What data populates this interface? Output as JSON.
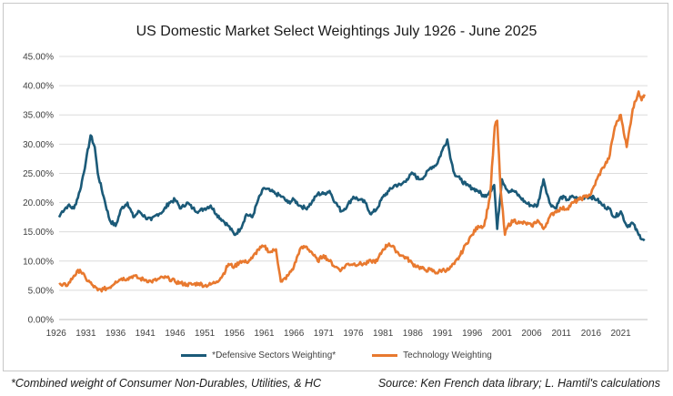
{
  "chart_data": {
    "type": "line",
    "title": "US Domestic Market Select Weightings July 1926 - June 2025",
    "xlabel": "",
    "ylabel": "",
    "xlim": [
      1926.5,
      2025.5
    ],
    "ylim": [
      0,
      45
    ],
    "yticks": [
      "0.00%",
      "5.00%",
      "10.00%",
      "15.00%",
      "20.00%",
      "25.00%",
      "30.00%",
      "35.00%",
      "40.00%",
      "45.00%"
    ],
    "xticks": [
      "1926",
      "1931",
      "1936",
      "1941",
      "1946",
      "1951",
      "1956",
      "1961",
      "1966",
      "1971",
      "1976",
      "1981",
      "1986",
      "1991",
      "1996",
      "2001",
      "2006",
      "2011",
      "2016",
      "2021"
    ],
    "legend_position": "bottom",
    "series": [
      {
        "name": "*Defensive Sectors Weighting*",
        "color": "#1b5a78",
        "x": [
          1926.5,
          1927,
          1928,
          1929,
          1930,
          1931,
          1931.8,
          1932.5,
          1933,
          1934,
          1935,
          1936,
          1937,
          1938,
          1939,
          1940,
          1941,
          1942,
          1943,
          1944,
          1945,
          1946,
          1947,
          1948,
          1949,
          1950,
          1951,
          1952,
          1953,
          1954,
          1955,
          1956,
          1957,
          1958,
          1959,
          1960,
          1961,
          1962,
          1963,
          1964,
          1965,
          1966,
          1967,
          1968,
          1969,
          1970,
          1971,
          1972,
          1973,
          1974,
          1975,
          1976,
          1977,
          1978,
          1979,
          1980,
          1981,
          1982,
          1983,
          1984,
          1985,
          1986,
          1987,
          1988,
          1989,
          1990,
          1991,
          1991.8,
          1992.5,
          1993,
          1994,
          1995,
          1996,
          1997,
          1998,
          1999,
          1999.7,
          2000.2,
          2001,
          2002,
          2003,
          2004,
          2005,
          2006,
          2007,
          2008,
          2009,
          2010,
          2011,
          2012,
          2013,
          2014,
          2015,
          2016,
          2017,
          2018,
          2019,
          2020,
          2021,
          2022,
          2023,
          2024,
          2025
        ],
        "values": [
          17.5,
          18.5,
          19.5,
          19,
          22,
          27,
          31.5,
          29.5,
          25,
          21,
          17,
          16,
          19,
          20,
          17.5,
          18.5,
          17.5,
          17,
          18,
          18.5,
          20,
          20.5,
          19,
          20,
          19,
          18.5,
          19,
          19.5,
          18,
          17,
          16,
          14.5,
          15.5,
          18,
          17.5,
          20.5,
          22.5,
          22,
          21.5,
          21,
          20,
          20.5,
          19.5,
          19,
          20,
          21.5,
          21.5,
          22,
          20,
          18.5,
          19.5,
          21,
          20.5,
          20,
          18,
          19,
          21,
          22,
          23,
          23,
          24,
          25,
          24,
          24.5,
          26,
          26.5,
          29,
          30.8,
          27,
          25,
          24,
          23,
          22.5,
          22,
          21,
          22,
          23,
          15.5,
          24,
          22,
          22,
          21,
          20,
          19.5,
          19.5,
          24,
          20,
          19,
          21,
          20.5,
          21,
          20.5,
          21,
          21,
          20.5,
          19.5,
          19,
          17.5,
          18.5,
          16,
          16.5,
          14.5,
          13.5
        ]
      },
      {
        "name": "Technology Weighting",
        "color": "#e8792f",
        "x": [
          1926.5,
          1927,
          1928,
          1929,
          1930,
          1931,
          1932,
          1933,
          1934,
          1935,
          1936,
          1937,
          1938,
          1939,
          1940,
          1941,
          1942,
          1943,
          1944,
          1945,
          1946,
          1947,
          1948,
          1949,
          1950,
          1951,
          1952,
          1953,
          1954,
          1955,
          1956,
          1957,
          1958,
          1959,
          1960,
          1961,
          1962,
          1963,
          1963.8,
          1964,
          1965,
          1966,
          1967,
          1968,
          1969,
          1970,
          1971,
          1972,
          1973,
          1974,
          1975,
          1976,
          1977,
          1978,
          1979,
          1980,
          1981,
          1982,
          1983,
          1984,
          1985,
          1986,
          1987,
          1988,
          1989,
          1990,
          1991,
          1992,
          1993,
          1994,
          1995,
          1996,
          1997,
          1998,
          1999,
          1999.8,
          2000.2,
          2000.8,
          2001.5,
          2002,
          2003,
          2004,
          2005,
          2006,
          2007,
          2008,
          2009,
          2010,
          2011,
          2012,
          2013,
          2014,
          2015,
          2016,
          2017,
          2018,
          2019,
          2020,
          2021,
          2022,
          2023,
          2024,
          2024.5,
          2025
        ],
        "values": [
          6,
          5.8,
          6,
          7.5,
          8.5,
          7,
          6,
          5,
          5.2,
          5.5,
          6.5,
          7,
          7,
          7.5,
          7,
          6.8,
          6.5,
          6.8,
          7.2,
          7,
          6.5,
          6.2,
          6,
          6,
          6.2,
          5.8,
          6,
          6.5,
          7.5,
          9.5,
          9,
          10,
          9.8,
          10.5,
          12,
          12.5,
          11.5,
          12,
          6.5,
          6.5,
          7.5,
          9,
          12,
          12.5,
          11.5,
          10,
          11,
          10,
          9,
          8.5,
          9.5,
          9.5,
          9.5,
          9.5,
          10,
          10,
          12,
          13,
          12,
          11,
          10.5,
          9.5,
          9,
          8.5,
          8.5,
          8,
          8.5,
          8.5,
          9.5,
          11,
          13,
          14.5,
          16,
          16,
          21,
          33,
          34,
          22,
          14.5,
          16,
          17,
          16.5,
          16.5,
          16,
          17,
          15.5,
          17.5,
          18.5,
          19,
          19,
          20,
          20.5,
          21,
          21.5,
          24,
          26,
          27.5,
          33,
          35,
          29.5,
          36,
          39,
          37.5,
          38.5
        ]
      }
    ]
  },
  "footnote": "*Combined weight of Consumer Non-Durables, Utilities, & HC",
  "source": "Source:  Ken French data library; L. Hamtil's calculations"
}
